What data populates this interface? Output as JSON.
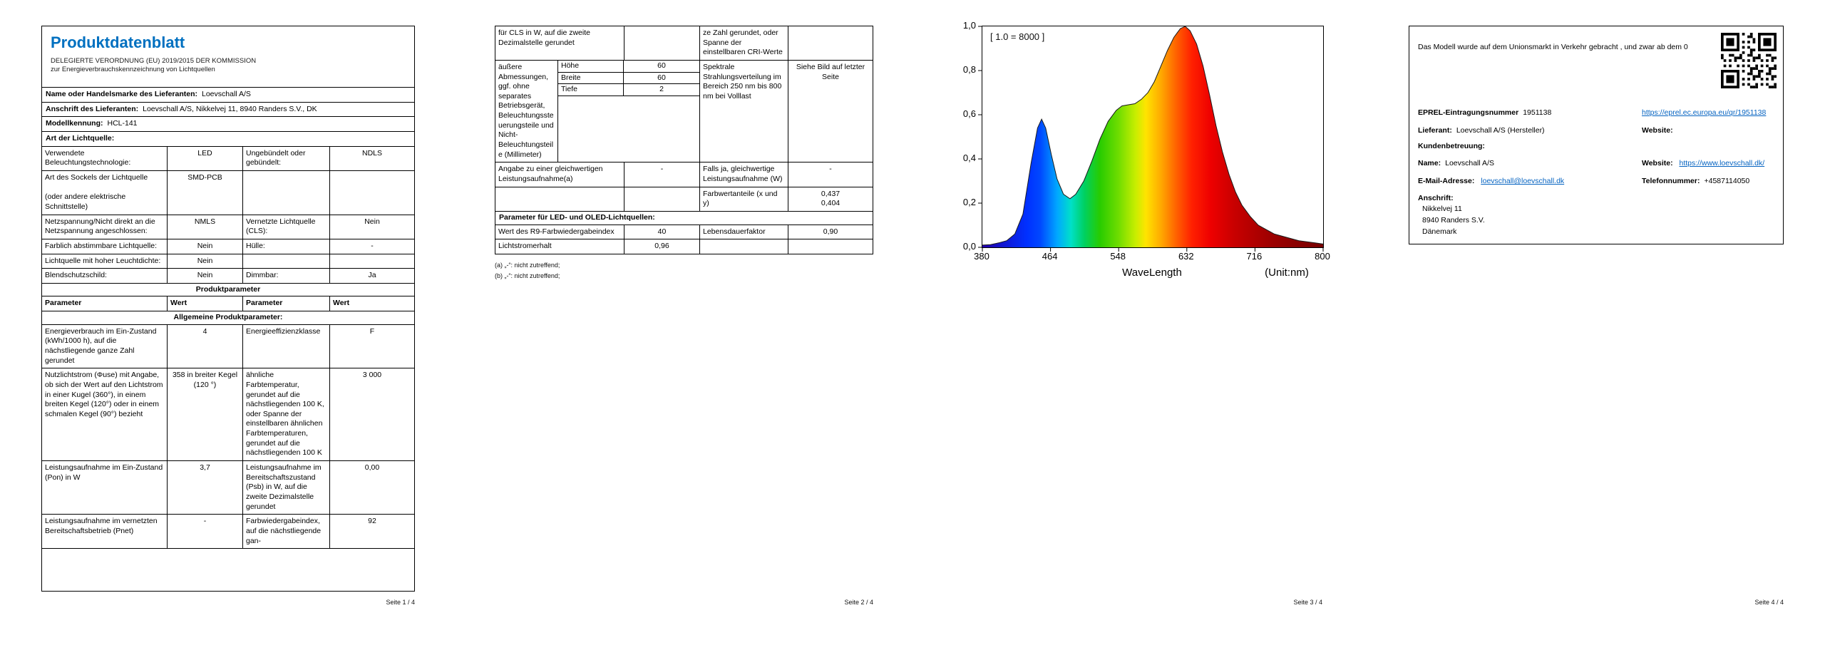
{
  "colors": {
    "title_blue": "#0070C0",
    "link_blue": "#0563C1"
  },
  "footers": {
    "page1": "Seite 1 / 4",
    "page2": "Seite 2 / 4",
    "page3": "Seite 3 / 4",
    "page4": "Seite 4 / 4"
  },
  "page1": {
    "title": "Produktdatenblatt",
    "regulation": "DELEGIERTE VERORDNUNG (EU) 2019/2015 DER KOMMISSION zur Energieverbrauchskennzeichnung von Lichtquellen",
    "supplier_name_label": "Name oder Handelsmarke des Lieferanten:",
    "supplier_name": "Loevschall A/S",
    "supplier_address_label": "Anschrift des Lieferanten:",
    "supplier_address": "Loevschall A/S, Nikkelvej 11, 8940 Randers S.V., DK",
    "model_label": "Modellkennung:",
    "model": "HCL-141",
    "light_source_type_label": "Art der Lichtquelle:",
    "rows": [
      [
        "Verwendete Beleuchtungstechnologie:",
        "LED",
        "Ungebündelt oder gebündelt:",
        "NDLS"
      ],
      [
        "Art des Sockels der Lichtquelle\n\n(oder andere elektrische Schnittstelle)",
        "SMD-PCB",
        "",
        ""
      ],
      [
        "Netzspannung/Nicht direkt an die Netzspannung angeschlossen:",
        "NMLS",
        "Vernetzte Lichtquelle (CLS):",
        "Nein"
      ],
      [
        "Farblich abstimmbare Lichtquelle:",
        "Nein",
        "Hülle:",
        "-"
      ],
      [
        "Lichtquelle mit hoher Leuchtdichte:",
        "Nein",
        "",
        ""
      ],
      [
        "Blendschutzschild:",
        "Nein",
        "Dimmbar:",
        "Ja"
      ]
    ],
    "section_product_params": "Produktparameter",
    "col_headers": [
      "Parameter",
      "Wert",
      "Parameter",
      "Wert"
    ],
    "section_general_params": "Allgemeine Produktparameter:",
    "param_rows": [
      [
        "Energieverbrauch im Ein-Zustand (kWh/1000 h), auf die nächstliegende ganze Zahl gerundet",
        "4",
        "Energieeffizienzklasse",
        "F"
      ],
      [
        "Nutzlichtstrom (Φuse) mit Angabe, ob sich der Wert auf den Lichtstrom in einer Kugel (360°), in einem breiten Kegel (120°) oder in einem schmalen Kegel (90°) bezieht",
        "358 in breiter Kegel (120 °)",
        "ähnliche Farbtemperatur, gerundet auf die nächstliegenden 100 K, oder Spanne der einstellbaren ähnlichen Farbtemperaturen, gerundet auf die nächstliegenden 100 K",
        "3 000"
      ],
      [
        "Leistungsaufnahme im Ein-Zustand (Pon) in W",
        "3,7",
        "Leistungsaufnahme im Bereitschaftszustand (Psb) in W, auf die zweite Dezimalstelle gerundet",
        "0,00"
      ],
      [
        "Leistungsaufnahme im vernetzten Bereitschaftsbetrieb (Pnet)",
        "-",
        "Farbwiedergabeindex, auf die nächstliegende gan-",
        "92"
      ]
    ]
  },
  "page2": {
    "cont_row": [
      "für CLS in W, auf die zweite Dezimalstelle gerundet",
      "",
      "ze Zahl gerundet, oder Spanne der einstellbaren CRI-Werte",
      ""
    ],
    "dims_row": {
      "label": "äußere Abmessungen, ggf. ohne separates Betriebsgerät, Beleuchtungssteuerungsteile und Nicht-Beleuchtungsteile (Millimeter)",
      "dims": [
        [
          "Höhe",
          "60"
        ],
        [
          "Breite",
          "60"
        ],
        [
          "Tiefe",
          "2"
        ]
      ],
      "c2": "Spektrale Strahlungsverteilung im Bereich 250 nm bis 800 nm bei Volllast",
      "c3": "Siehe Bild auf letzter Seite"
    },
    "row_equiv": [
      "Angabe zu einer gleichwertigen Leistungsaufnahme(a)",
      "-",
      "Falls ja, gleichwertige Leistungsaufnahme (W)",
      "-"
    ],
    "row_chrom": [
      "",
      "",
      "Farbwertanteile (x und y)",
      "0,437\n0,404"
    ],
    "section_led": "Parameter für LED- und OLED-Lichtquellen:",
    "row_r9": [
      "Wert des R9-Farbwiedergabeindex",
      "40",
      "Lebensdauerfaktor",
      "0,90"
    ],
    "row_lumen": [
      "Lichtstromerhalt",
      "0,96",
      "",
      ""
    ],
    "footnotes": [
      "(a) „-“: nicht zutreffend;",
      "(b) „-“: nicht zutreffend;"
    ]
  },
  "chart_data": {
    "type": "area",
    "title": "",
    "annotation": "[ 1.0 = 8000 ]",
    "xlabel": "WaveLength",
    "xlabel_unit": "(Unit:nm)",
    "ylabel": "",
    "xlim": [
      380,
      800
    ],
    "ylim": [
      0,
      1
    ],
    "grid": false,
    "xticks": [
      {
        "v": 380,
        "label": "380"
      },
      {
        "v": 464,
        "label": "464"
      },
      {
        "v": 548,
        "label": "548"
      },
      {
        "v": 632,
        "label": "632"
      },
      {
        "v": 716,
        "label": "716"
      },
      {
        "v": 800,
        "label": "800"
      }
    ],
    "yticks": [
      {
        "v": 0.0,
        "label": "0,0"
      },
      {
        "v": 0.2,
        "label": "0,2"
      },
      {
        "v": 0.4,
        "label": "0,4"
      },
      {
        "v": 0.6,
        "label": "0,6"
      },
      {
        "v": 0.8,
        "label": "0,8"
      },
      {
        "v": 1.0,
        "label": "1,0"
      }
    ],
    "points": [
      [
        380,
        0.01
      ],
      [
        390,
        0.012
      ],
      [
        400,
        0.02
      ],
      [
        410,
        0.03
      ],
      [
        420,
        0.06
      ],
      [
        430,
        0.15
      ],
      [
        440,
        0.38
      ],
      [
        448,
        0.54
      ],
      [
        453,
        0.58
      ],
      [
        458,
        0.54
      ],
      [
        465,
        0.42
      ],
      [
        472,
        0.31
      ],
      [
        480,
        0.24
      ],
      [
        488,
        0.22
      ],
      [
        495,
        0.24
      ],
      [
        505,
        0.3
      ],
      [
        515,
        0.39
      ],
      [
        525,
        0.49
      ],
      [
        535,
        0.57
      ],
      [
        545,
        0.62
      ],
      [
        552,
        0.64
      ],
      [
        560,
        0.645
      ],
      [
        568,
        0.65
      ],
      [
        576,
        0.67
      ],
      [
        584,
        0.7
      ],
      [
        592,
        0.75
      ],
      [
        600,
        0.82
      ],
      [
        608,
        0.89
      ],
      [
        616,
        0.95
      ],
      [
        624,
        0.99
      ],
      [
        630,
        1.0
      ],
      [
        636,
        0.98
      ],
      [
        644,
        0.92
      ],
      [
        652,
        0.82
      ],
      [
        660,
        0.69
      ],
      [
        668,
        0.55
      ],
      [
        676,
        0.43
      ],
      [
        684,
        0.33
      ],
      [
        692,
        0.25
      ],
      [
        700,
        0.19
      ],
      [
        710,
        0.14
      ],
      [
        720,
        0.1
      ],
      [
        730,
        0.08
      ],
      [
        740,
        0.06
      ],
      [
        750,
        0.05
      ],
      [
        760,
        0.04
      ],
      [
        770,
        0.03
      ],
      [
        780,
        0.025
      ],
      [
        790,
        0.02
      ],
      [
        800,
        0.015
      ]
    ],
    "gradient_stops": [
      {
        "offset": 0.0,
        "color": "#2200AA"
      },
      {
        "offset": 0.13,
        "color": "#0030FF"
      },
      {
        "offset": 0.17,
        "color": "#0048FF"
      },
      {
        "offset": 0.22,
        "color": "#00A8FF"
      },
      {
        "offset": 0.26,
        "color": "#00E0C8"
      },
      {
        "offset": 0.3,
        "color": "#00D060"
      },
      {
        "offset": 0.345,
        "color": "#28CC00"
      },
      {
        "offset": 0.4,
        "color": "#70DD00"
      },
      {
        "offset": 0.45,
        "color": "#C8EE00"
      },
      {
        "offset": 0.48,
        "color": "#FFE400"
      },
      {
        "offset": 0.525,
        "color": "#FFA800"
      },
      {
        "offset": 0.57,
        "color": "#FF6000"
      },
      {
        "offset": 0.615,
        "color": "#FF2000"
      },
      {
        "offset": 0.67,
        "color": "#EE0000"
      },
      {
        "offset": 0.74,
        "color": "#C80000"
      },
      {
        "offset": 0.85,
        "color": "#9C0000"
      },
      {
        "offset": 1.0,
        "color": "#760000"
      }
    ]
  },
  "page4": {
    "intro": "Das Modell wurde auf dem Unionsmarkt in Verkehr gebracht , und zwar ab dem 0",
    "eprel_label": "EPREL-Eintragungsnummer",
    "eprel_number": "1951138",
    "eprel_link": "https://eprel.ec.europa.eu/qr/1951138",
    "lieferant_label": "Lieferant:",
    "lieferant_value": "Loevschall A/S (Hersteller)",
    "website_label": "Website:",
    "kundenbetreuung_label": "Kundenbetreuung:",
    "name_label": "Name:",
    "name_value": "Loevschall A/S",
    "website2_label": "Website:",
    "website2_link": "https://www.loevschall.dk/",
    "email_label": "E-Mail-Adresse:",
    "email_link": "loevschall@loevschall.dk",
    "phone_label": "Telefonnummer:",
    "phone_value": "+4587114050",
    "anschrift_label": "Anschrift:",
    "address_lines": [
      "Nikkelvej 11",
      "8940 Randers S.V.",
      "Dänemark"
    ]
  }
}
